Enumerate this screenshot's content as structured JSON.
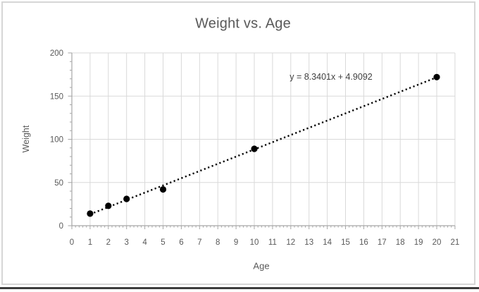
{
  "window": {
    "background": "#ffffff",
    "frame_border_color": "#d6d6d6",
    "bottom_edge_color": "#3d3d3d"
  },
  "chart_data": {
    "type": "scatter",
    "title": "Weight vs. Age",
    "xlabel": "Age",
    "ylabel": "Weight",
    "series": [
      {
        "name": "Weight",
        "points": [
          [
            1,
            14
          ],
          [
            2,
            23
          ],
          [
            3,
            31
          ],
          [
            5,
            42
          ],
          [
            10,
            89
          ],
          [
            20,
            172
          ]
        ],
        "marker": "filled-circle",
        "marker_color": "#000000"
      }
    ],
    "trendline": {
      "equation_label": "y = 8.3401x + 4.9092",
      "slope": 8.3401,
      "intercept": 4.9092,
      "x_start": 1,
      "x_end": 20,
      "style": "dotted",
      "color": "#000000"
    },
    "x_axis": {
      "min": 0,
      "max": 21,
      "major_step": 1,
      "minor_step": 0.2,
      "tick_labels": [
        "0",
        "1",
        "2",
        "3",
        "4",
        "5",
        "6",
        "7",
        "8",
        "9",
        "10",
        "11",
        "12",
        "13",
        "14",
        "15",
        "16",
        "17",
        "18",
        "19",
        "20",
        "21"
      ]
    },
    "y_axis": {
      "min": 0,
      "max": 200,
      "major_step": 50,
      "minor_step": 10,
      "tick_labels": [
        "0",
        "50",
        "100",
        "150",
        "200"
      ]
    },
    "grid": {
      "show": true,
      "color": "#d9d9d9"
    },
    "axis_color": "#a6a6a6",
    "tick_label_color": "#595959",
    "title_color": "#595959",
    "equation_color": "#404040",
    "legend": "none"
  }
}
